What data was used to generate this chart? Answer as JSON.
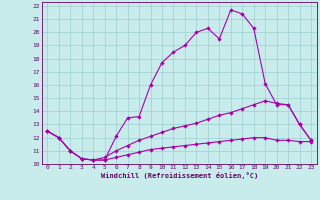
{
  "xlabel": "Windchill (Refroidissement éolien,°C)",
  "bg_color": "#c8ecec",
  "line_color": "#aa00aa",
  "grid_color": "#9ecece",
  "xlim": [
    -0.5,
    23.5
  ],
  "ylim": [
    10,
    22.3
  ],
  "xticks": [
    0,
    1,
    2,
    3,
    4,
    5,
    6,
    7,
    8,
    9,
    10,
    11,
    12,
    13,
    14,
    15,
    16,
    17,
    18,
    19,
    20,
    21,
    22,
    23
  ],
  "yticks": [
    10,
    11,
    12,
    13,
    14,
    15,
    16,
    17,
    18,
    19,
    20,
    21,
    22
  ],
  "line1_x": [
    0,
    1,
    2,
    3,
    4,
    5,
    6,
    7,
    8,
    9,
    10,
    11,
    12,
    13,
    14,
    15,
    16,
    17,
    18,
    19,
    20,
    21,
    22,
    23
  ],
  "line1_y": [
    12.5,
    12.0,
    11.0,
    10.4,
    10.3,
    10.3,
    12.1,
    13.5,
    13.6,
    16.0,
    17.7,
    18.5,
    19.0,
    20.0,
    20.3,
    19.5,
    21.7,
    21.4,
    20.3,
    16.1,
    14.5,
    14.5,
    13.0,
    11.8
  ],
  "line2_x": [
    0,
    1,
    2,
    3,
    4,
    5,
    6,
    7,
    8,
    9,
    10,
    11,
    12,
    13,
    14,
    15,
    16,
    17,
    18,
    19,
    20,
    21,
    22,
    23
  ],
  "line2_y": [
    12.5,
    12.0,
    11.0,
    10.4,
    10.3,
    10.5,
    11.0,
    11.4,
    11.8,
    12.1,
    12.4,
    12.7,
    12.9,
    13.1,
    13.4,
    13.7,
    13.9,
    14.2,
    14.5,
    14.8,
    14.6,
    14.5,
    13.0,
    11.8
  ],
  "line3_x": [
    0,
    1,
    2,
    3,
    4,
    5,
    6,
    7,
    8,
    9,
    10,
    11,
    12,
    13,
    14,
    15,
    16,
    17,
    18,
    19,
    20,
    21,
    22,
    23
  ],
  "line3_y": [
    12.5,
    12.0,
    11.0,
    10.4,
    10.3,
    10.3,
    10.5,
    10.7,
    10.9,
    11.1,
    11.2,
    11.3,
    11.4,
    11.5,
    11.6,
    11.7,
    11.8,
    11.9,
    12.0,
    12.0,
    11.8,
    11.8,
    11.7,
    11.7
  ]
}
